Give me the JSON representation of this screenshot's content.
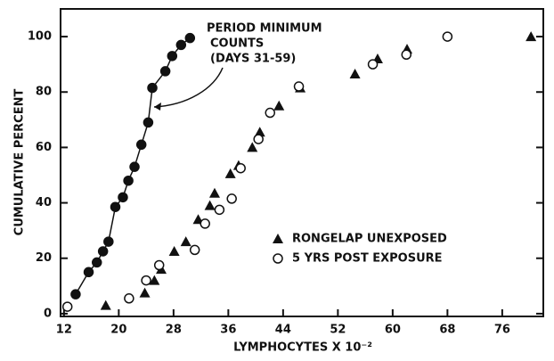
{
  "chart_data": {
    "type": "scatter",
    "x_label": "LYMPHOCYTES X 10⁻²",
    "y_label": "CUMULATIVE PERCENT",
    "annotation": [
      "PERIOD MINIMUM",
      "COUNTS",
      "(DAYS 31-59)"
    ],
    "xlim": [
      11.5,
      82
    ],
    "xticks": [
      12,
      20,
      28,
      36,
      44,
      52,
      60,
      68,
      76
    ],
    "ylim": [
      -1,
      110
    ],
    "yticks": [
      0,
      20,
      40,
      60,
      80,
      100
    ],
    "legend": "lower right",
    "series": [
      {
        "marker": "filled-circle",
        "color": "#111",
        "curve": true,
        "x": [
          13.7,
          15.6,
          16.8,
          17.7,
          18.5,
          19.5,
          20.6,
          21.4,
          22.3,
          23.3,
          24.3,
          24.9,
          26.8,
          27.8,
          29.1,
          30.4
        ],
        "values": [
          7,
          15,
          18.5,
          22.5,
          26,
          38.5,
          42,
          48,
          53,
          61,
          69,
          81.5,
          87.5,
          93,
          97,
          99.5
        ]
      },
      {
        "name": "RONGELAP UNEXPOSED",
        "marker": "triangle",
        "color": "#111",
        "x": [
          18.1,
          23.8,
          25.2,
          26.2,
          28.1,
          29.8,
          31.6,
          33.3,
          34,
          36.3,
          37.5,
          39.5,
          40.6,
          43.4,
          46.5,
          54.5,
          57.8,
          62.1,
          80.2
        ],
        "values": [
          3,
          7.5,
          12,
          16,
          22.5,
          26,
          34,
          39,
          43.5,
          50.5,
          53.5,
          60,
          65.5,
          75,
          81.5,
          86.5,
          92,
          95.5,
          100
        ]
      },
      {
        "name": "5 YRS POST EXPOSURE",
        "marker": "open-circle",
        "color": "#111",
        "x": [
          12.5,
          21.5,
          24,
          25.9,
          31.1,
          32.6,
          34.7,
          36.5,
          37.8,
          40.4,
          42.1,
          46.3,
          57.1,
          62,
          68
        ],
        "values": [
          2.5,
          5.5,
          12,
          17.5,
          23,
          32.5,
          37.5,
          41.5,
          52.5,
          63,
          72.5,
          82,
          90,
          93.5,
          100
        ]
      }
    ]
  }
}
